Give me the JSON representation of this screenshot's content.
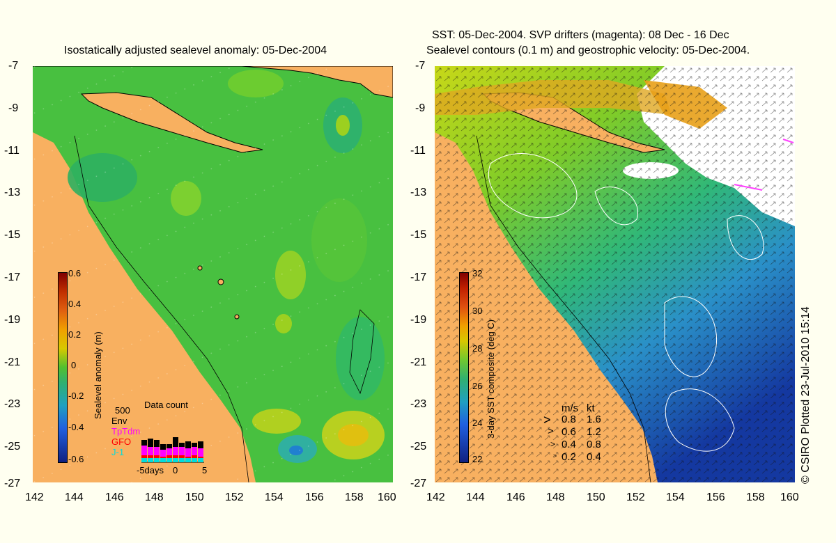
{
  "left_map": {
    "title": "Isostatically adjusted sealevel anomaly: 05-Dec-2004",
    "colorbar_label": "Sealevel anomaly (m)",
    "colorbar_ticks": [
      "0.6",
      "0.4",
      "0.2",
      "0",
      "-0.2",
      "-0.4",
      "-0.6"
    ],
    "data_count": {
      "title": "Data count",
      "scale": "500",
      "legend": [
        {
          "name": "Env",
          "color": "#000000"
        },
        {
          "name": "TpTdm",
          "color": "#ff00ff"
        },
        {
          "name": "GFO",
          "color": "#ff0000"
        },
        {
          "name": "J-1",
          "color": "#00dddd"
        }
      ],
      "x_ticks": [
        "-5days",
        "0",
        "5"
      ]
    }
  },
  "right_map": {
    "title_line1": "SST: 05-Dec-2004. SVP drifters (magenta): 08 Dec - 16 Dec",
    "title_line2": "Sealevel contours (0.1 m) and geostrophic velocity: 05-Dec-2004.",
    "colorbar_label": "3-day SST composite (deg C)",
    "colorbar_ticks": [
      "32",
      "30",
      "28",
      "26",
      "24",
      "22"
    ],
    "velocity_key": {
      "header_ms": "m/s",
      "header_kt": "kt",
      "rows": [
        {
          "ms": "0.8",
          "kt": "1.6"
        },
        {
          "ms": "0.6",
          "kt": "1.2"
        },
        {
          "ms": "0.4",
          "kt": "0.8"
        },
        {
          "ms": "0.2",
          "kt": "0.4"
        }
      ]
    }
  },
  "y_ticks": [
    "-7",
    "-9",
    "-11",
    "-13",
    "-15",
    "-17",
    "-19",
    "-21",
    "-23",
    "-25",
    "-27"
  ],
  "x_ticks": [
    "142",
    "144",
    "146",
    "148",
    "150",
    "152",
    "154",
    "156",
    "158",
    "160"
  ],
  "credit": "© CSIRO Plotted 23-Jul-2010 15:14",
  "colors": {
    "land": "#f8b060",
    "sea_green": "#4cc23c",
    "background": "#fffff0"
  }
}
